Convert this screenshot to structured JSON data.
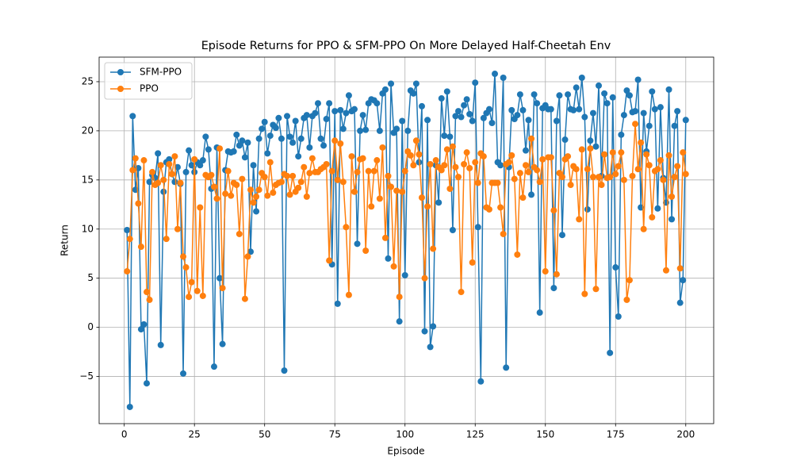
{
  "chart_data": {
    "type": "line",
    "title": "Episode Returns for PPO & SFM-PPO On More Delayed Half-Cheetah Env",
    "xlabel": "Episode",
    "ylabel": "Return",
    "grid": true,
    "legend": "upper left",
    "xlim": [
      -8.95,
      209.95
    ],
    "ylim": [
      -9.8,
      27.5
    ],
    "xticks": [
      0,
      25,
      50,
      75,
      100,
      125,
      150,
      175,
      200
    ],
    "yticks": [
      {
        "value": -5,
        "label": "−5"
      },
      0,
      5,
      10,
      15,
      20,
      25
    ],
    "x": [
      1,
      2,
      3,
      4,
      5,
      6,
      7,
      8,
      9,
      10,
      11,
      12,
      13,
      14,
      15,
      16,
      17,
      18,
      19,
      20,
      21,
      22,
      23,
      24,
      25,
      26,
      27,
      28,
      29,
      30,
      31,
      32,
      33,
      34,
      35,
      36,
      37,
      38,
      39,
      40,
      41,
      42,
      43,
      44,
      45,
      46,
      47,
      48,
      49,
      50,
      51,
      52,
      53,
      54,
      55,
      56,
      57,
      58,
      59,
      60,
      61,
      62,
      63,
      64,
      65,
      66,
      67,
      68,
      69,
      70,
      71,
      72,
      73,
      74,
      75,
      76,
      77,
      78,
      79,
      80,
      81,
      82,
      83,
      84,
      85,
      86,
      87,
      88,
      89,
      90,
      91,
      92,
      93,
      94,
      95,
      96,
      97,
      98,
      99,
      100,
      101,
      102,
      103,
      104,
      105,
      106,
      107,
      108,
      109,
      110,
      111,
      112,
      113,
      114,
      115,
      116,
      117,
      118,
      119,
      120,
      121,
      122,
      123,
      124,
      125,
      126,
      127,
      128,
      129,
      130,
      131,
      132,
      133,
      134,
      135,
      136,
      137,
      138,
      139,
      140,
      141,
      142,
      143,
      144,
      145,
      146,
      147,
      148,
      149,
      150,
      151,
      152,
      153,
      154,
      155,
      156,
      157,
      158,
      159,
      160,
      161,
      162,
      163,
      164,
      165,
      166,
      167,
      168,
      169,
      170,
      171,
      172,
      173,
      174,
      175,
      176,
      177,
      178,
      179,
      180,
      181,
      182,
      183,
      184,
      185,
      186,
      187,
      188,
      189,
      190,
      191,
      192,
      193,
      194,
      195,
      196,
      197,
      198,
      199,
      200
    ],
    "series": [
      {
        "name": "SFM-PPO",
        "color": "#1f77b4",
        "values": [
          9.9,
          -8.1,
          21.5,
          14,
          16.2,
          -0.2,
          0.3,
          -5.7,
          14.8,
          15.5,
          15.2,
          17.7,
          -1.8,
          13.8,
          16.8,
          17.1,
          15.6,
          14.8,
          16.3,
          14.6,
          -4.7,
          15.8,
          18,
          16.5,
          15.8,
          16.8,
          16.5,
          17,
          19.4,
          18.1,
          14.1,
          -4,
          18.3,
          5,
          -1.7,
          16,
          17.9,
          17.8,
          17.9,
          19.6,
          18.5,
          19,
          17.3,
          18.8,
          7.7,
          16.5,
          11.8,
          19.2,
          20.2,
          20.9,
          17.7,
          19.5,
          20.6,
          20.3,
          21.3,
          19.2,
          -4.4,
          21.5,
          19.4,
          18.8,
          21,
          17.4,
          19.2,
          21.3,
          21.6,
          18.3,
          21.5,
          21.8,
          22.8,
          19.2,
          18.5,
          21.2,
          22.8,
          6.4,
          22,
          2.4,
          22.1,
          20.2,
          21.8,
          23.6,
          22,
          22.2,
          8.5,
          20,
          21.6,
          20.1,
          22.8,
          23.2,
          23.1,
          22.8,
          20,
          23.8,
          24.2,
          7,
          24.8,
          19.8,
          20.2,
          0.6,
          21,
          5.3,
          20,
          24.1,
          23.8,
          24.8,
          16.8,
          22.5,
          -0.4,
          21.1,
          -2,
          0.1,
          16.5,
          12.7,
          23.3,
          19.5,
          24,
          19.4,
          9.9,
          21.5,
          22,
          21.4,
          22.6,
          23.2,
          21.7,
          21,
          24.9,
          10.2,
          -5.5,
          21.3,
          21.8,
          22.2,
          20.8,
          25.8,
          16.8,
          16.5,
          25.4,
          -4.1,
          16.3,
          22.1,
          21.2,
          21.6,
          23.7,
          22.1,
          18,
          21.1,
          13.5,
          23.7,
          22.8,
          1.5,
          22.3,
          22.6,
          22.2,
          22.2,
          4,
          21,
          23.6,
          9.4,
          19.1,
          23.7,
          22.2,
          22.1,
          24.4,
          22.2,
          25.4,
          21.4,
          12,
          19,
          21.8,
          18.4,
          24.6,
          15.4,
          23.8,
          22.8,
          -2.6,
          23.4,
          6.1,
          1.1,
          19.6,
          21.6,
          24.1,
          23.6,
          21.9,
          22,
          25.2,
          12.2,
          21.8,
          17.9,
          20.5,
          24,
          22.2,
          12.1,
          22.4,
          15.2,
          12.7,
          24.2,
          11,
          20.5,
          22,
          2.5,
          4.8,
          21.1
        ]
      },
      {
        "name": "PPO",
        "color": "#ff7f0e",
        "values": [
          5.7,
          9,
          16,
          17.2,
          12.6,
          8.2,
          17,
          3.6,
          2.8,
          15.8,
          14.5,
          14.7,
          16.5,
          15,
          9,
          16.6,
          15.6,
          17.4,
          10,
          14.7,
          7.2,
          6.1,
          3.1,
          4.6,
          17.1,
          3.7,
          12.2,
          3.2,
          15.5,
          15.3,
          15.5,
          14.3,
          13.1,
          18.2,
          4,
          13.6,
          15.9,
          13.4,
          14.7,
          14.5,
          9.5,
          15.1,
          2.9,
          7.2,
          14,
          12.7,
          13.3,
          14,
          15.7,
          15.3,
          13.4,
          16.8,
          13.7,
          14.5,
          14.7,
          14.8,
          15.6,
          15.4,
          13.5,
          15.4,
          13.8,
          14.2,
          14.8,
          16.3,
          13.3,
          15.7,
          17.2,
          15.8,
          15.8,
          16.1,
          16.3,
          16.6,
          6.8,
          15.9,
          19,
          15,
          18.7,
          14.8,
          10.2,
          3.3,
          17.4,
          13.8,
          15.8,
          17.1,
          17.2,
          7.8,
          15.9,
          12.3,
          15.9,
          17,
          13.1,
          18.3,
          9.1,
          15.4,
          14.3,
          6.2,
          13.9,
          3.1,
          13.8,
          15.9,
          17.9,
          17.5,
          16.5,
          19,
          17.6,
          13.2,
          5,
          12.3,
          16.6,
          8,
          17,
          16.3,
          16,
          16.5,
          18.1,
          14.1,
          18.4,
          16.3,
          15.3,
          3.6,
          16.6,
          17.8,
          16.2,
          6.6,
          16.8,
          14.7,
          17.7,
          17.4,
          12.2,
          12,
          14.7,
          14.7,
          14.7,
          12.2,
          9.5,
          16.6,
          16.8,
          17.5,
          15.1,
          7.4,
          15.7,
          13.2,
          16.5,
          15.8,
          19.2,
          16.3,
          16,
          14.8,
          17.1,
          5.7,
          17.3,
          17.3,
          11.9,
          5.4,
          15.7,
          15.3,
          17.1,
          17.4,
          14.5,
          16.4,
          16.1,
          11,
          18.1,
          3.4,
          16.1,
          18.2,
          15.3,
          3.9,
          15.3,
          14.5,
          17.6,
          15.2,
          15.3,
          17.8,
          15.6,
          16.4,
          17.8,
          15,
          2.8,
          4.8,
          15.4,
          20.7,
          16.1,
          18.8,
          10,
          17.6,
          16.5,
          11.2,
          15.9,
          16.1,
          17,
          15,
          5.8,
          17.5,
          13.3,
          15.3,
          16.4,
          6,
          17.8,
          15.6
        ]
      }
    ]
  }
}
